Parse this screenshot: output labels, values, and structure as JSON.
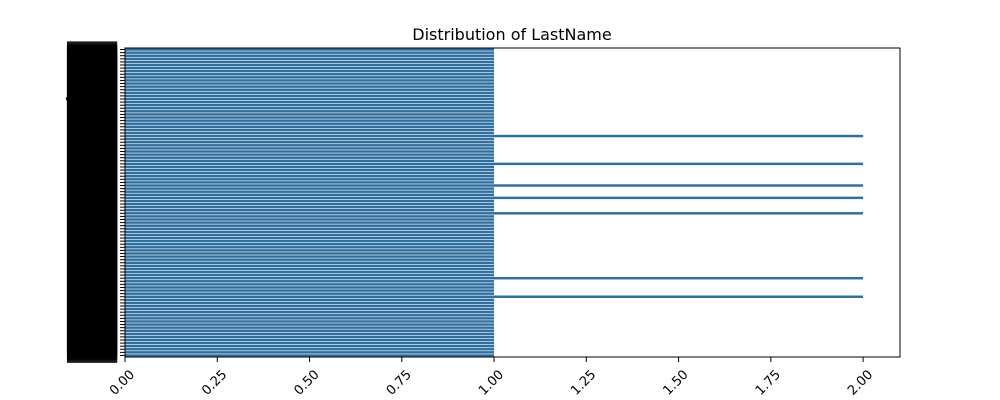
{
  "chart_data": {
    "type": "bar",
    "orientation": "horizontal",
    "title": "Distribution of LastName",
    "xlabel": "",
    "ylabel": "",
    "xlim": [
      0,
      2.1
    ],
    "x_ticks": [
      "0.00",
      "0.25",
      "0.50",
      "0.75",
      "1.00",
      "1.25",
      "1.50",
      "1.75",
      "2.00"
    ],
    "x_tick_values": [
      0,
      0.25,
      0.5,
      0.75,
      1.0,
      1.25,
      1.5,
      1.75,
      2.0
    ],
    "bar_color": "#2f6f9f",
    "grid": false,
    "category_count": 100,
    "visible_category_labels": [
      "Shaw",
      "Clark",
      "Van Der",
      "Van",
      "Metz",
      "Vos",
      "Fra",
      "Low",
      "Tom",
      "D'Ab",
      "Vant",
      "Mar",
      "Ma"
    ],
    "values_pattern_note_excluded": true,
    "values": [
      1,
      1,
      1,
      1,
      1,
      1,
      1,
      1,
      1,
      1,
      1,
      1,
      1,
      1,
      1,
      1,
      1,
      1,
      1,
      1,
      1,
      1,
      1,
      1,
      1,
      1,
      1,
      1,
      2,
      1,
      1,
      1,
      1,
      1,
      1,
      1,
      1,
      2,
      1,
      1,
      1,
      1,
      1,
      1,
      2,
      1,
      1,
      1,
      2,
      1,
      1,
      1,
      1,
      2,
      1,
      1,
      1,
      1,
      1,
      1,
      1,
      1,
      1,
      1,
      1,
      1,
      1,
      1,
      1,
      1,
      1,
      1,
      1,
      1,
      2,
      1,
      1,
      1,
      1,
      1,
      2,
      1,
      1,
      1,
      1,
      1,
      1,
      1,
      1,
      1,
      1,
      1,
      1,
      1,
      1,
      1,
      1,
      1,
      1,
      1
    ]
  }
}
